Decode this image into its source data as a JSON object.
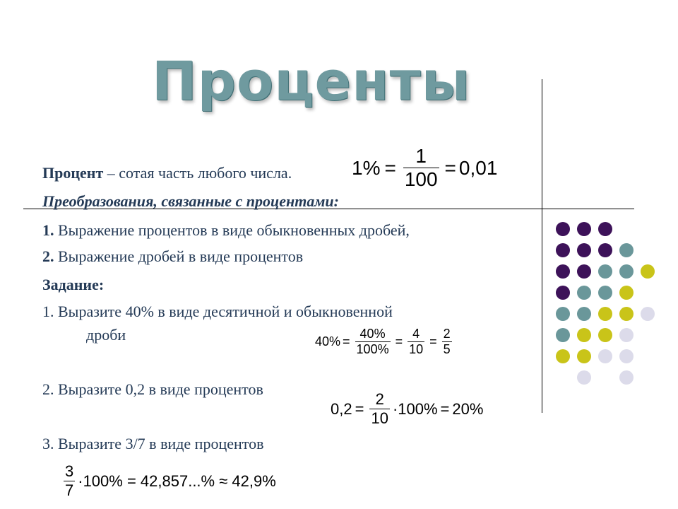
{
  "slide": {
    "title": "Проценты",
    "definition": {
      "term": "Процент",
      "rest": " – сотая часть любого числа.",
      "formula": {
        "lhs": "1%",
        "eq1": "=",
        "num": "1",
        "den": "100",
        "eq2": "=",
        "rhs": "0,01"
      }
    },
    "transforms_heading": "Преобразования, связанные с процентами:",
    "items": [
      {
        "num": "1.",
        "text": " Выражение процентов в виде обыкновенных дробей,"
      },
      {
        "num": "2.",
        "text": " Выражение дробей в виде процентов"
      }
    ],
    "task_heading": "Задание:",
    "tasks": [
      {
        "line1": "1. Выразите 40% в виде десятичной и обыкновенной",
        "line2": "дроби"
      },
      {
        "line1": "2. Выразите 0,2  в виде процентов"
      },
      {
        "line1": "3. Выразите 3/7 в виде процентов"
      }
    ],
    "formula1": {
      "lhs": "40%",
      "eq1": "=",
      "f1num": "40%",
      "f1den": "100%",
      "eq2": "=",
      "f2num": "4",
      "f2den": "10",
      "eq3": "=",
      "f3num": "2",
      "f3den": "5"
    },
    "formula2": {
      "lhs": "0,2",
      "eq1": "=",
      "fnum": "2",
      "fden": "10",
      "mul": "·100%",
      "eq2": "=",
      "rhs": "20%"
    },
    "formula3": {
      "fnum": "3",
      "fden": "7",
      "rest": "·100% = 42,857...% ≈ 42,9%"
    }
  },
  "decoration": {
    "colors": {
      "purple": "#3d1259",
      "teal": "#6a979a",
      "yellow": "#c9c419",
      "lavender": "#dcdbea"
    },
    "dot_grid": [
      [
        "purple",
        "purple",
        "purple",
        null,
        null
      ],
      [
        "purple",
        "purple",
        "purple",
        "teal",
        null
      ],
      [
        "purple",
        "purple",
        "teal",
        "teal",
        "yellow"
      ],
      [
        "purple",
        "teal",
        "teal",
        "yellow",
        null
      ],
      [
        "teal",
        "teal",
        "yellow",
        "yellow",
        "lavender"
      ],
      [
        "teal",
        "yellow",
        "yellow",
        "lavender",
        null
      ],
      [
        "yellow",
        "yellow",
        "lavender",
        "lavender",
        null
      ],
      [
        null,
        "lavender",
        null,
        "lavender",
        null
      ]
    ]
  }
}
